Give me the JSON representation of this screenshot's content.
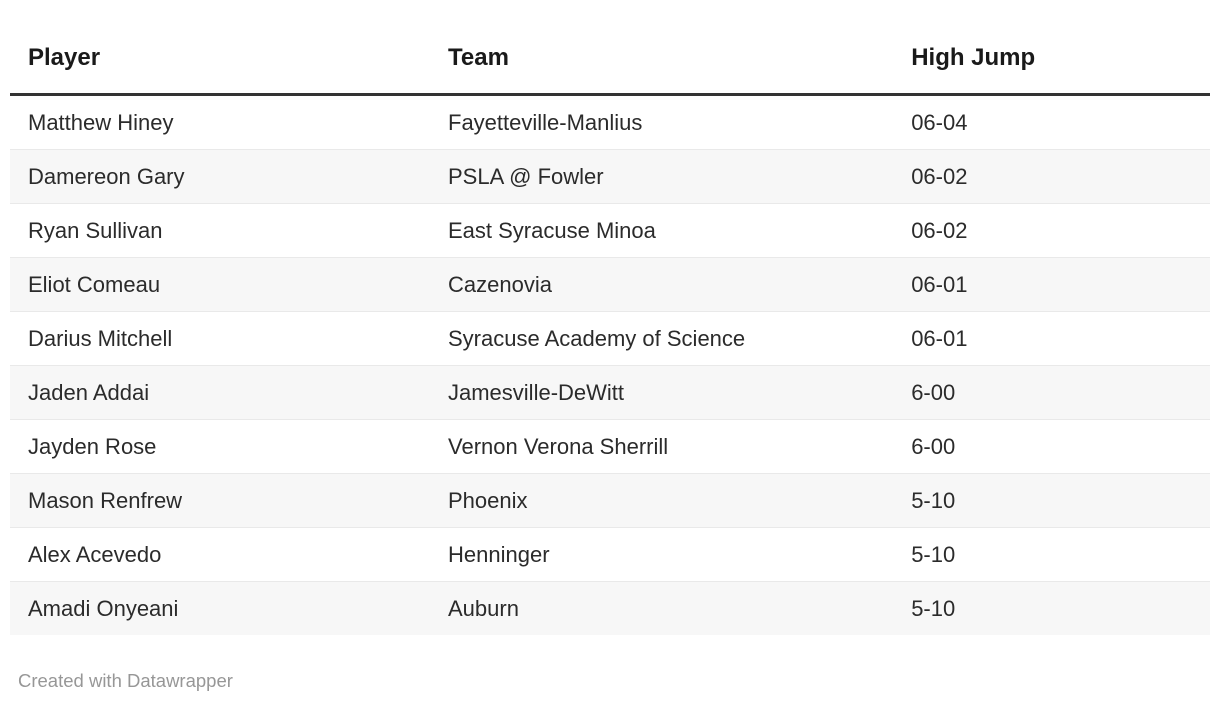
{
  "chart_data": {
    "type": "table",
    "title": "",
    "columns": [
      {
        "key": "player",
        "label": "Player"
      },
      {
        "key": "team",
        "label": "Team"
      },
      {
        "key": "high_jump",
        "label": "High Jump"
      }
    ],
    "rows": [
      {
        "player": "Matthew Hiney",
        "team": "Fayetteville-Manlius",
        "high_jump": "06-04"
      },
      {
        "player": "Damereon Gary",
        "team": "PSLA @ Fowler",
        "high_jump": "06-02"
      },
      {
        "player": "Ryan Sullivan",
        "team": "East Syracuse Minoa",
        "high_jump": "06-02"
      },
      {
        "player": "Eliot Comeau",
        "team": "Cazenovia",
        "high_jump": "06-01"
      },
      {
        "player": "Darius Mitchell",
        "team": "Syracuse Academy of Science",
        "high_jump": "06-01"
      },
      {
        "player": "Jaden Addai",
        "team": "Jamesville-DeWitt",
        "high_jump": "6-00"
      },
      {
        "player": "Jayden Rose",
        "team": "Vernon Verona Sherrill",
        "high_jump": "6-00"
      },
      {
        "player": "Mason Renfrew",
        "team": "Phoenix",
        "high_jump": "5-10"
      },
      {
        "player": "Alex Acevedo",
        "team": "Henninger",
        "high_jump": "5-10"
      },
      {
        "player": "Amadi Onyeani",
        "team": "Auburn",
        "high_jump": "5-10"
      }
    ],
    "layout": {
      "zebra_striping": true,
      "header_rule": true
    }
  },
  "footer": {
    "attribution": "Created with Datawrapper"
  },
  "colors": {
    "background": "#ffffff",
    "header_text": "#1a1a1a",
    "header_rule": "#333333",
    "body_text": "#2b2b2b",
    "row_stripe": "#f7f7f7",
    "row_divider": "#e9e9e9",
    "footer_text": "#979797"
  }
}
